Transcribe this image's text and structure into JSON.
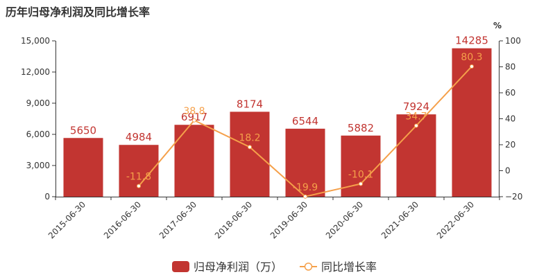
{
  "chart_data": {
    "type": "bar",
    "title": "历年归母净利润及同比增长率",
    "categories": [
      "2015-06-30",
      "2016-06-30",
      "2017-06-30",
      "2018-06-30",
      "2019-06-30",
      "2020-06-30",
      "2021-06-30",
      "2022-06-30"
    ],
    "series": [
      {
        "name": "归母净利润（万）",
        "type": "bar",
        "axis": "left",
        "values": [
          5650,
          4984,
          6917,
          8174,
          6544,
          5882,
          7924,
          14285
        ],
        "labels": [
          "5650",
          "4984",
          "6917",
          "8174",
          "6544",
          "5882",
          "7924",
          "14285"
        ],
        "color": "#c23531"
      },
      {
        "name": "同比增长率",
        "type": "line",
        "axis": "right",
        "values": [
          null,
          -11.8,
          38.8,
          18.2,
          -19.9,
          -10.1,
          34.7,
          80.3
        ],
        "labels": [
          "",
          "-11.8",
          "38.8",
          "18.2",
          "-19.9",
          "-10.1",
          "34.7",
          "80.3"
        ],
        "color": "#f5a04a"
      }
    ],
    "y_left": {
      "ylim": [
        0,
        15000
      ],
      "ticks": [
        "0",
        "3,000",
        "6,000",
        "9,000",
        "12,000",
        "15,000"
      ]
    },
    "y_right": {
      "label": "%",
      "ylim": [
        -20,
        100
      ],
      "ticks": [
        "−20",
        "0",
        "20",
        "40",
        "60",
        "80",
        "100"
      ]
    },
    "legend": {
      "position": "bottom-center"
    },
    "grid": false
  }
}
